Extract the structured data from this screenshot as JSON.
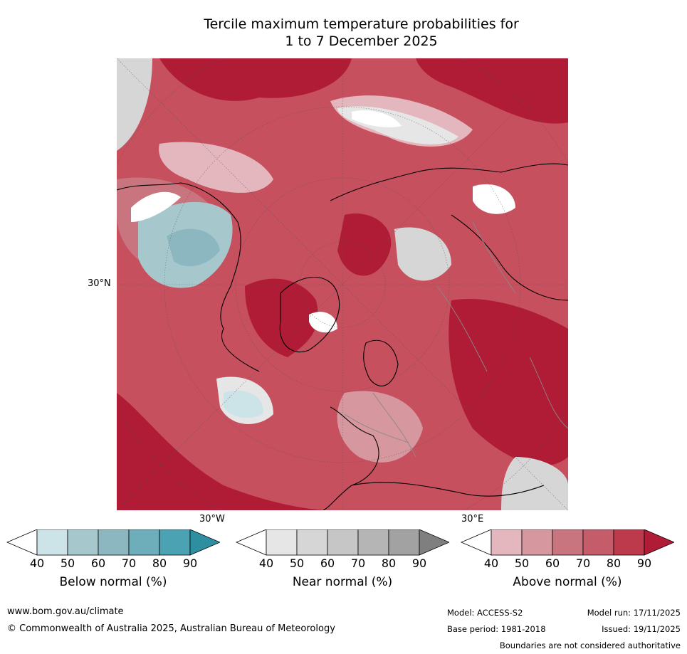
{
  "title_line1": "Tercile maximum temperature probabilities for",
  "title_line2": "1 to 7 December 2025",
  "map": {
    "lat_label": "30°N",
    "lon_label_west": "30°W",
    "lon_label_east": "30°E"
  },
  "legends": [
    {
      "name": "Below normal (%)",
      "ticks": [
        "40",
        "50",
        "60",
        "70",
        "80",
        "90"
      ],
      "colors": [
        "#ffffff",
        "#cce3e8",
        "#a6c8cd",
        "#8cb7c1",
        "#6eaebb",
        "#4aa2b2",
        "#2d8fa0"
      ]
    },
    {
      "name": "Near normal (%)",
      "ticks": [
        "40",
        "50",
        "60",
        "70",
        "80",
        "90"
      ],
      "colors": [
        "#ffffff",
        "#e6e6e6",
        "#d6d6d6",
        "#c6c6c6",
        "#b5b5b5",
        "#a2a2a2",
        "#7f7f7f"
      ]
    },
    {
      "name": "Above normal (%)",
      "ticks": [
        "40",
        "50",
        "60",
        "70",
        "80",
        "90"
      ],
      "colors": [
        "#ffffff",
        "#e3b7bd",
        "#d6979f",
        "#c9757f",
        "#c55c6a",
        "#bd3a4d",
        "#b01c36"
      ]
    }
  ],
  "footer": {
    "website": "www.bom.gov.au/climate",
    "copyright": "© Commonwealth of Australia 2025, Australian Bureau of Meteorology",
    "model": "Model: ACCESS-S2",
    "base_period": "Base period: 1981-2018",
    "model_run": "Model run: 17/11/2025",
    "issued": "Issued: 19/11/2025",
    "disclaimer": "Boundaries are not considered authoritative"
  }
}
